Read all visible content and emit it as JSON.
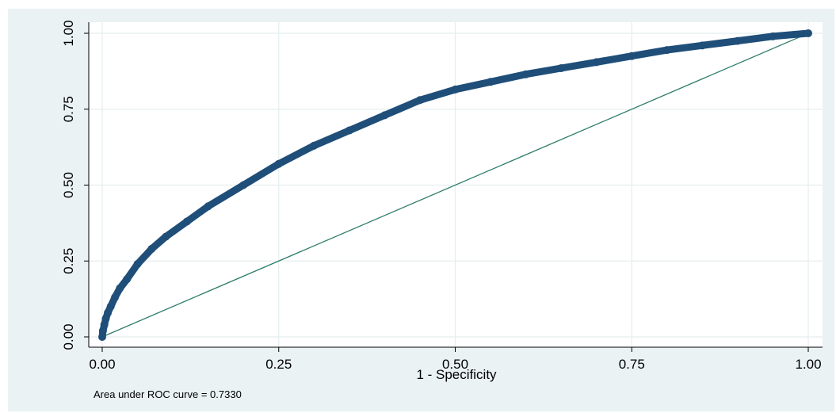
{
  "chart_data": {
    "type": "line",
    "title": "",
    "xlabel": "1 - Specificity",
    "ylabel": "",
    "xlim": [
      0,
      1
    ],
    "ylim": [
      0,
      1
    ],
    "x_ticks": [
      0,
      0.25,
      0.5,
      0.75,
      1
    ],
    "x_tick_labels": [
      "0.00",
      "0.25",
      "0.50",
      "0.75",
      "1.00"
    ],
    "y_ticks": [
      0,
      0.25,
      0.5,
      0.75,
      1
    ],
    "y_tick_labels": [
      "0.00",
      "0.25",
      "0.50",
      "0.75",
      "1.00"
    ],
    "grid": true,
    "legend": "none",
    "annotation": "Area under ROC curve = 0.7330",
    "series": [
      {
        "style": "markers",
        "color": "#1f4e79",
        "x": [
          0,
          0.001,
          0.003,
          0.005,
          0.008,
          0.012,
          0.018,
          0.025,
          0.035,
          0.05,
          0.07,
          0.09,
          0.12,
          0.15,
          0.2,
          0.25,
          0.3,
          0.35,
          0.4,
          0.45,
          0.5,
          0.55,
          0.6,
          0.65,
          0.7,
          0.75,
          0.8,
          0.85,
          0.9,
          0.95,
          1.0
        ],
        "y": [
          0,
          0.02,
          0.04,
          0.06,
          0.08,
          0.1,
          0.13,
          0.16,
          0.19,
          0.24,
          0.29,
          0.33,
          0.38,
          0.43,
          0.5,
          0.57,
          0.63,
          0.68,
          0.73,
          0.78,
          0.815,
          0.84,
          0.865,
          0.885,
          0.905,
          0.925,
          0.945,
          0.96,
          0.975,
          0.99,
          1.0
        ]
      },
      {
        "style": "line",
        "color": "#2e7d6b",
        "x": [
          0,
          1
        ],
        "y": [
          0,
          1
        ]
      }
    ]
  }
}
